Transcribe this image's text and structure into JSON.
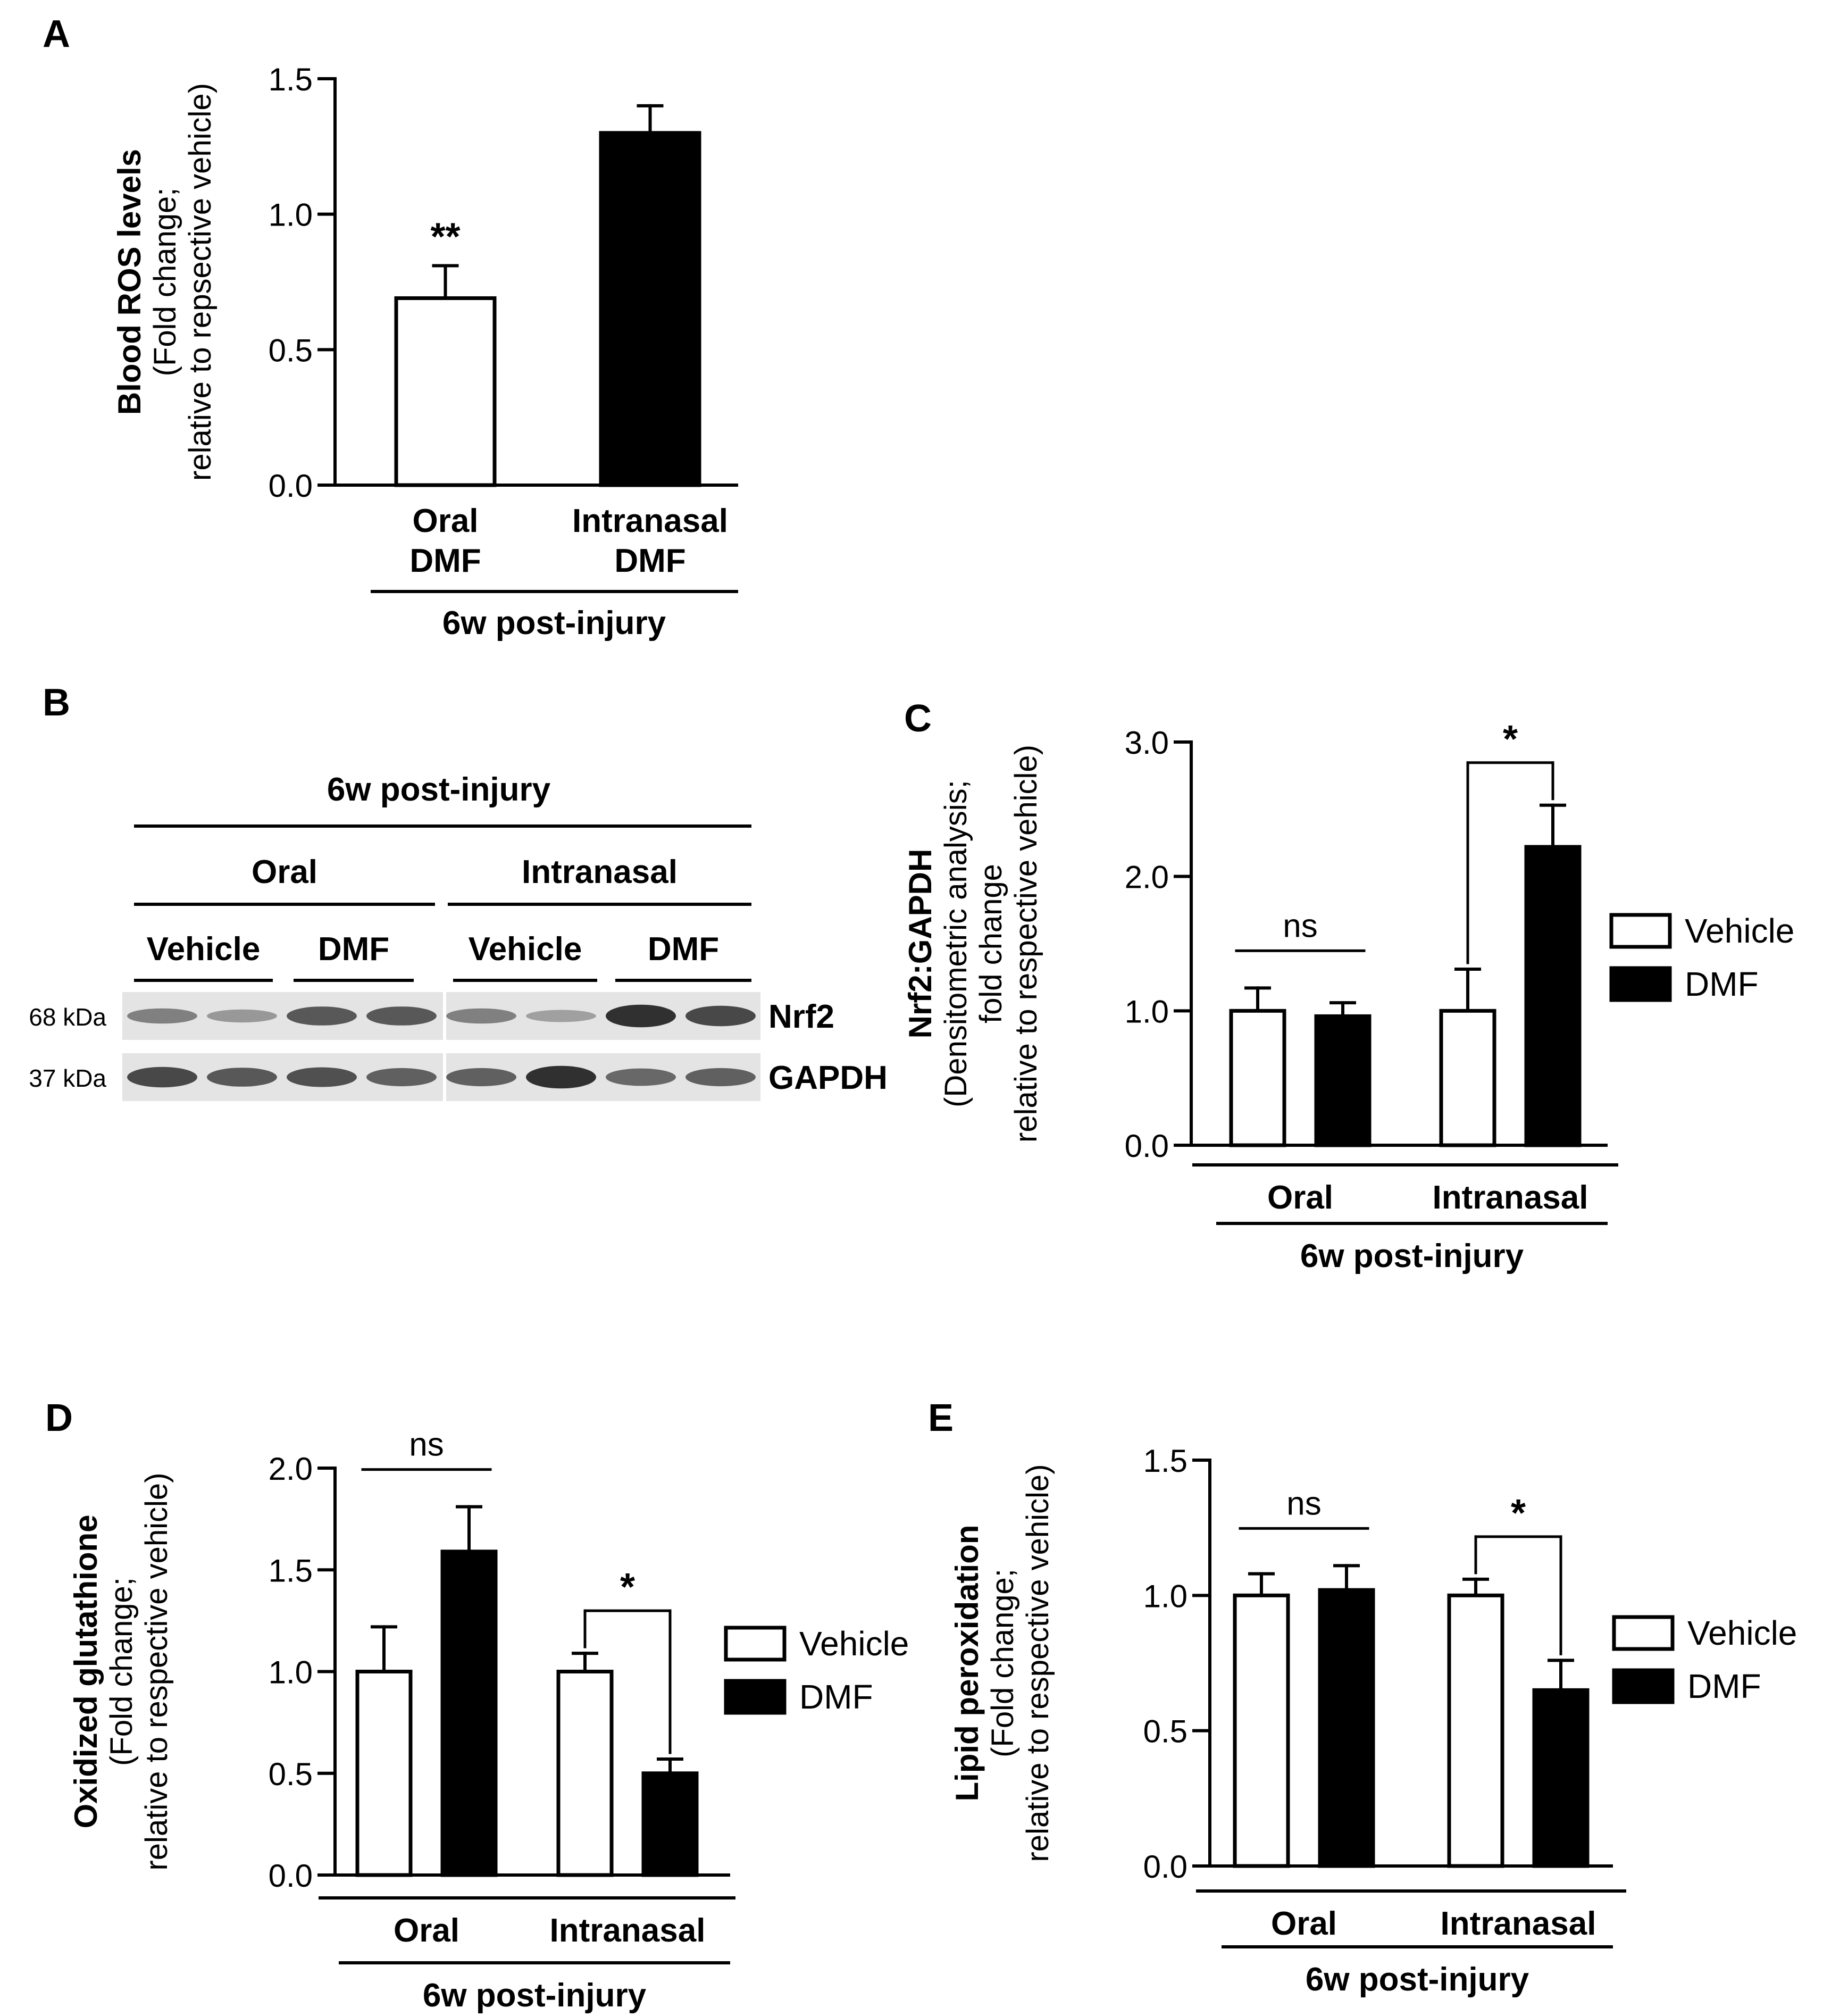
{
  "colors": {
    "ink": "#000000",
    "paper": "#ffffff",
    "blot_bg": "#e4e4e4",
    "band": "#3c3c3c"
  },
  "chart_data": [
    {
      "panel": "A",
      "type": "bar",
      "categories": [
        "Oral\nDMF",
        "Intranasal\nDMF"
      ],
      "values": [
        0.69,
        1.3
      ],
      "errors": [
        0.12,
        0.1
      ],
      "fills": [
        "#ffffff",
        "#000000"
      ],
      "ylim": [
        0,
        1.5
      ],
      "yticks": [
        0.0,
        0.5,
        1.0,
        1.5
      ],
      "ylabel_bold": "Blood ROS levels",
      "ylabel_lines": [
        "(Fold change;",
        "relative to repsective vehicle)"
      ],
      "group_label": "6w post-injury",
      "annotations": [
        "**"
      ]
    },
    {
      "panel": "C",
      "type": "bar",
      "groups": [
        "Oral",
        "Intranasal"
      ],
      "series": [
        {
          "name": "Vehicle",
          "values": [
            1.0,
            1.0
          ],
          "errors": [
            0.17,
            0.31
          ]
        },
        {
          "name": "DMF",
          "values": [
            0.96,
            2.22
          ],
          "errors": [
            0.1,
            0.31
          ]
        }
      ],
      "ylim": [
        0,
        3.0
      ],
      "yticks": [
        0.0,
        1.0,
        2.0,
        3.0
      ],
      "ylabel_bold": "Nrf2:GAPDH",
      "ylabel_lines": [
        "(Densitometric analysis;",
        "fold change",
        "relative to respective vehicle)"
      ],
      "group_label": "6w post-injury",
      "significance": [
        "ns",
        "*"
      ]
    },
    {
      "panel": "D",
      "type": "bar",
      "groups": [
        "Oral",
        "Intranasal"
      ],
      "series": [
        {
          "name": "Vehicle",
          "values": [
            1.0,
            1.0
          ],
          "errors": [
            0.22,
            0.09
          ]
        },
        {
          "name": "DMF",
          "values": [
            1.59,
            0.5
          ],
          "errors": [
            0.22,
            0.07
          ]
        }
      ],
      "ylim": [
        0,
        2.0
      ],
      "yticks": [
        0.0,
        0.5,
        1.0,
        1.5,
        2.0
      ],
      "ylabel_bold": "Oxidized glutathione",
      "ylabel_lines": [
        "(Fold change;",
        "relative to respective vehicle)"
      ],
      "group_label": "6w post-injury",
      "significance": [
        "ns",
        "*"
      ]
    },
    {
      "panel": "E",
      "type": "bar",
      "groups": [
        "Oral",
        "Intranasal"
      ],
      "series": [
        {
          "name": "Vehicle",
          "values": [
            1.0,
            1.0
          ],
          "errors": [
            0.08,
            0.06
          ]
        },
        {
          "name": "DMF",
          "values": [
            1.02,
            0.65
          ],
          "errors": [
            0.09,
            0.11
          ]
        }
      ],
      "ylim": [
        0,
        1.5
      ],
      "yticks": [
        0.0,
        0.5,
        1.0,
        1.5
      ],
      "ylabel_bold": "Lipid peroxidation",
      "ylabel_lines": [
        "(Fold change;",
        "relative to respective vehicle)"
      ],
      "group_label": "6w post-injury",
      "significance": [
        "ns",
        "*"
      ]
    }
  ],
  "blot": {
    "panel": "B",
    "title": "6w post-injury",
    "routes": [
      "Oral",
      "Intranasal"
    ],
    "treatments": [
      "Vehicle",
      "DMF",
      "Vehicle",
      "DMF"
    ],
    "rows": [
      {
        "marker": "68 kDa",
        "protein": "Nrf2",
        "intensities": [
          0.45,
          0.3,
          0.7,
          0.7,
          0.45,
          0.25,
          0.95,
          0.8
        ]
      },
      {
        "marker": "37 kDa",
        "protein": "GAPDH",
        "intensities": [
          0.8,
          0.7,
          0.75,
          0.65,
          0.65,
          0.95,
          0.6,
          0.65
        ]
      }
    ]
  }
}
